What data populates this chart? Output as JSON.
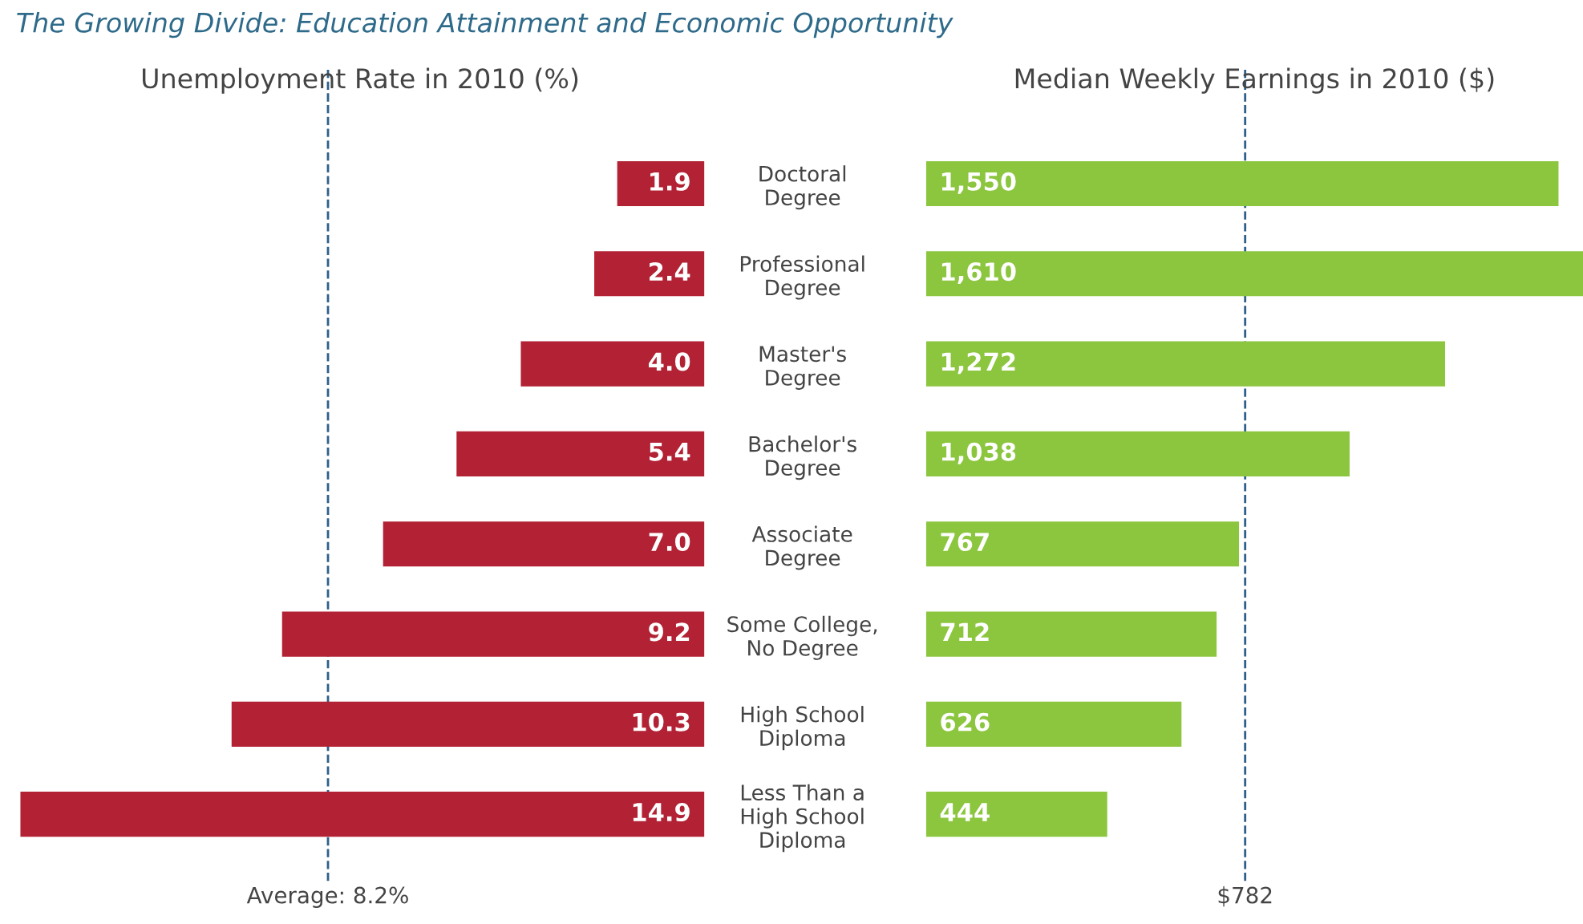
{
  "chart_data": [
    {
      "type": "bar",
      "orientation": "horizontal",
      "title": "Unemployment Rate in 2010 (%)",
      "annotations": [
        "The Growing Divide: Education Attainment and Economic Opportunity"
      ],
      "categories": [
        "Doctoral\nDegree",
        "Professional\nDegree",
        "Master's\nDegree",
        "Bachelor's\nDegree",
        "Associate\nDegree",
        "Some College,\nNo Degree",
        "High School\nDiploma",
        "Less Than a\nHigh School\nDiploma"
      ],
      "values": [
        1.9,
        2.4,
        4.0,
        5.4,
        7.0,
        9.2,
        10.3,
        14.9
      ],
      "value_labels": [
        "1.9",
        "2.4",
        "4.0",
        "5.4",
        "7.0",
        "9.2",
        "10.3",
        "14.9"
      ],
      "color": "#b22234",
      "xlim": [
        15,
        0
      ],
      "tick_labels": "y",
      "grid": false,
      "legend": false,
      "ref_lines": [
        {
          "axis": "x",
          "value": 8.2,
          "label": "Average: 8.2%",
          "color": "#2e5f8a",
          "line_style": "dashed"
        }
      ]
    },
    {
      "type": "bar",
      "orientation": "horizontal",
      "title": "Median Weekly Earnings in 2010 ($)",
      "categories": [
        null,
        null,
        null,
        null,
        null,
        null,
        null,
        null
      ],
      "values": [
        1550,
        1610,
        1272,
        1038,
        767,
        712,
        626,
        444
      ],
      "value_labels": [
        "1,550",
        "1,610",
        "1,272",
        "1,038",
        "767",
        "712",
        "626",
        "444"
      ],
      "color": "#8cc63f",
      "xlim": [
        0,
        1610
      ],
      "tick_labels": false,
      "grid": false,
      "legend": false,
      "ref_lines": [
        {
          "axis": "x",
          "value": 782,
          "label": "$782",
          "color": "#2e5f8a",
          "line_style": "dashed"
        }
      ]
    }
  ]
}
